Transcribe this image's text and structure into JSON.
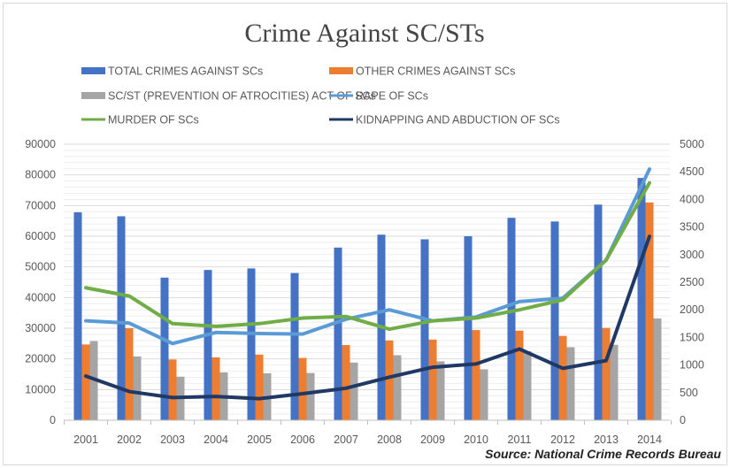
{
  "chart_data": {
    "type": "bar+line",
    "title": "Crime Against SC/STs",
    "source": "Source: National Crime Records Bureau",
    "categories": [
      "2001",
      "2002",
      "2003",
      "2004",
      "2005",
      "2006",
      "2007",
      "2008",
      "2009",
      "2010",
      "2011",
      "2012",
      "2013",
      "2014"
    ],
    "y_left": {
      "range": [
        0,
        90000
      ],
      "ticks": [
        "0",
        "10000",
        "20000",
        "30000",
        "40000",
        "50000",
        "60000",
        "70000",
        "80000",
        "90000"
      ]
    },
    "y_right": {
      "range": [
        0,
        5000
      ],
      "ticks": [
        "0",
        "500",
        "1000",
        "1500",
        "2000",
        "2500",
        "3000",
        "3500",
        "4000",
        "4500",
        "5000"
      ]
    },
    "grid": true,
    "legend_position": "top",
    "series": [
      {
        "name": "TOTAL CRIMES AGAINST  SCs",
        "kind": "bar",
        "axis": "left",
        "color": "#4472c4",
        "values": [
          67800,
          66500,
          46500,
          49000,
          49500,
          48000,
          56300,
          60500,
          59000,
          60000,
          66000,
          64800,
          70300,
          79000
        ]
      },
      {
        "name": "OTHER CRIMES AGAINST SCs",
        "kind": "bar",
        "axis": "left",
        "color": "#ed7d31",
        "values": [
          24700,
          30000,
          19800,
          20500,
          21400,
          20300,
          24500,
          26000,
          26300,
          29400,
          29200,
          27500,
          30100,
          71000
        ]
      },
      {
        "name": "SC/ST (PREVENTION OF ATROCITIES) ACT OF SCs",
        "kind": "bar",
        "axis": "left",
        "color": "#a5a5a5",
        "values": [
          25800,
          20800,
          14200,
          15600,
          15300,
          15400,
          18800,
          21200,
          19200,
          16600,
          22500,
          23800,
          24600,
          33200
        ]
      },
      {
        "name": "RAPE OF SCs",
        "kind": "line",
        "axis": "right",
        "color": "#5b9bd5",
        "values": [
          1800,
          1760,
          1390,
          1590,
          1570,
          1560,
          1830,
          2000,
          1800,
          1870,
          2150,
          2210,
          2900,
          4550
        ]
      },
      {
        "name": "MURDER OF SCs",
        "kind": "line",
        "axis": "right",
        "color": "#70ad47",
        "values": [
          2400,
          2250,
          1750,
          1700,
          1750,
          1850,
          1880,
          1650,
          1800,
          1850,
          2000,
          2180,
          2900,
          4300
        ]
      },
      {
        "name": "KIDNAPPING AND ABDUCTION OF SCs",
        "kind": "line",
        "axis": "right",
        "color": "#203864",
        "values": [
          800,
          520,
          410,
          430,
          390,
          480,
          580,
          780,
          960,
          1020,
          1290,
          940,
          1080,
          3330
        ]
      }
    ]
  }
}
